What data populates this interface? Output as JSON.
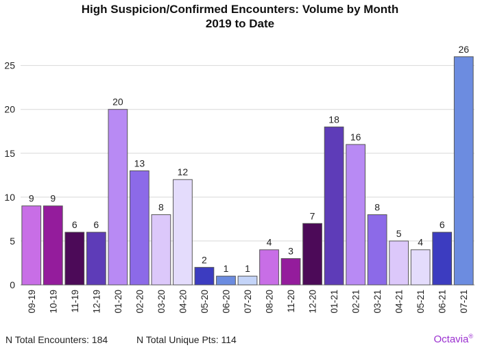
{
  "chart_data": {
    "type": "bar",
    "title": "High Suspicion/Confirmed Encounters: Volume by Month",
    "subtitle": "2019 to Date",
    "xlabel": "",
    "ylabel": "",
    "ylim": [
      0,
      27
    ],
    "yticks": [
      0,
      5,
      10,
      15,
      20,
      25
    ],
    "grid": true,
    "categories": [
      "09-19",
      "10-19",
      "11-19",
      "12-19",
      "01-20",
      "02-20",
      "03-20",
      "04-20",
      "05-20",
      "06-20",
      "07-20",
      "08-20",
      "11-20",
      "12-20",
      "01-21",
      "02-21",
      "03-21",
      "04-21",
      "05-21",
      "06-21",
      "07-21"
    ],
    "values": [
      9,
      9,
      6,
      6,
      20,
      13,
      8,
      12,
      2,
      1,
      1,
      4,
      3,
      7,
      18,
      16,
      8,
      5,
      4,
      6,
      26
    ],
    "colors": [
      "#c86ee6",
      "#941c9c",
      "#4c0a58",
      "#5e3cb8",
      "#b88af4",
      "#8c6ae8",
      "#dcc8fa",
      "#e4dcfc",
      "#3c3cc0",
      "#6c8ce0",
      "#c4d4f8",
      "#c86ee6",
      "#941c9c",
      "#4c0a58",
      "#5e3cb8",
      "#b88af4",
      "#8c6ae8",
      "#dcc8fa",
      "#e4dcfc",
      "#3c3cc0",
      "#6c8ce0"
    ]
  },
  "footer": {
    "total_encounters": "N Total Encounters: 184",
    "unique_pts": "N Total Unique Pts: 114",
    "brand": "Octavia",
    "brand_mark": "®",
    "brand_color": "#9b30d0"
  }
}
